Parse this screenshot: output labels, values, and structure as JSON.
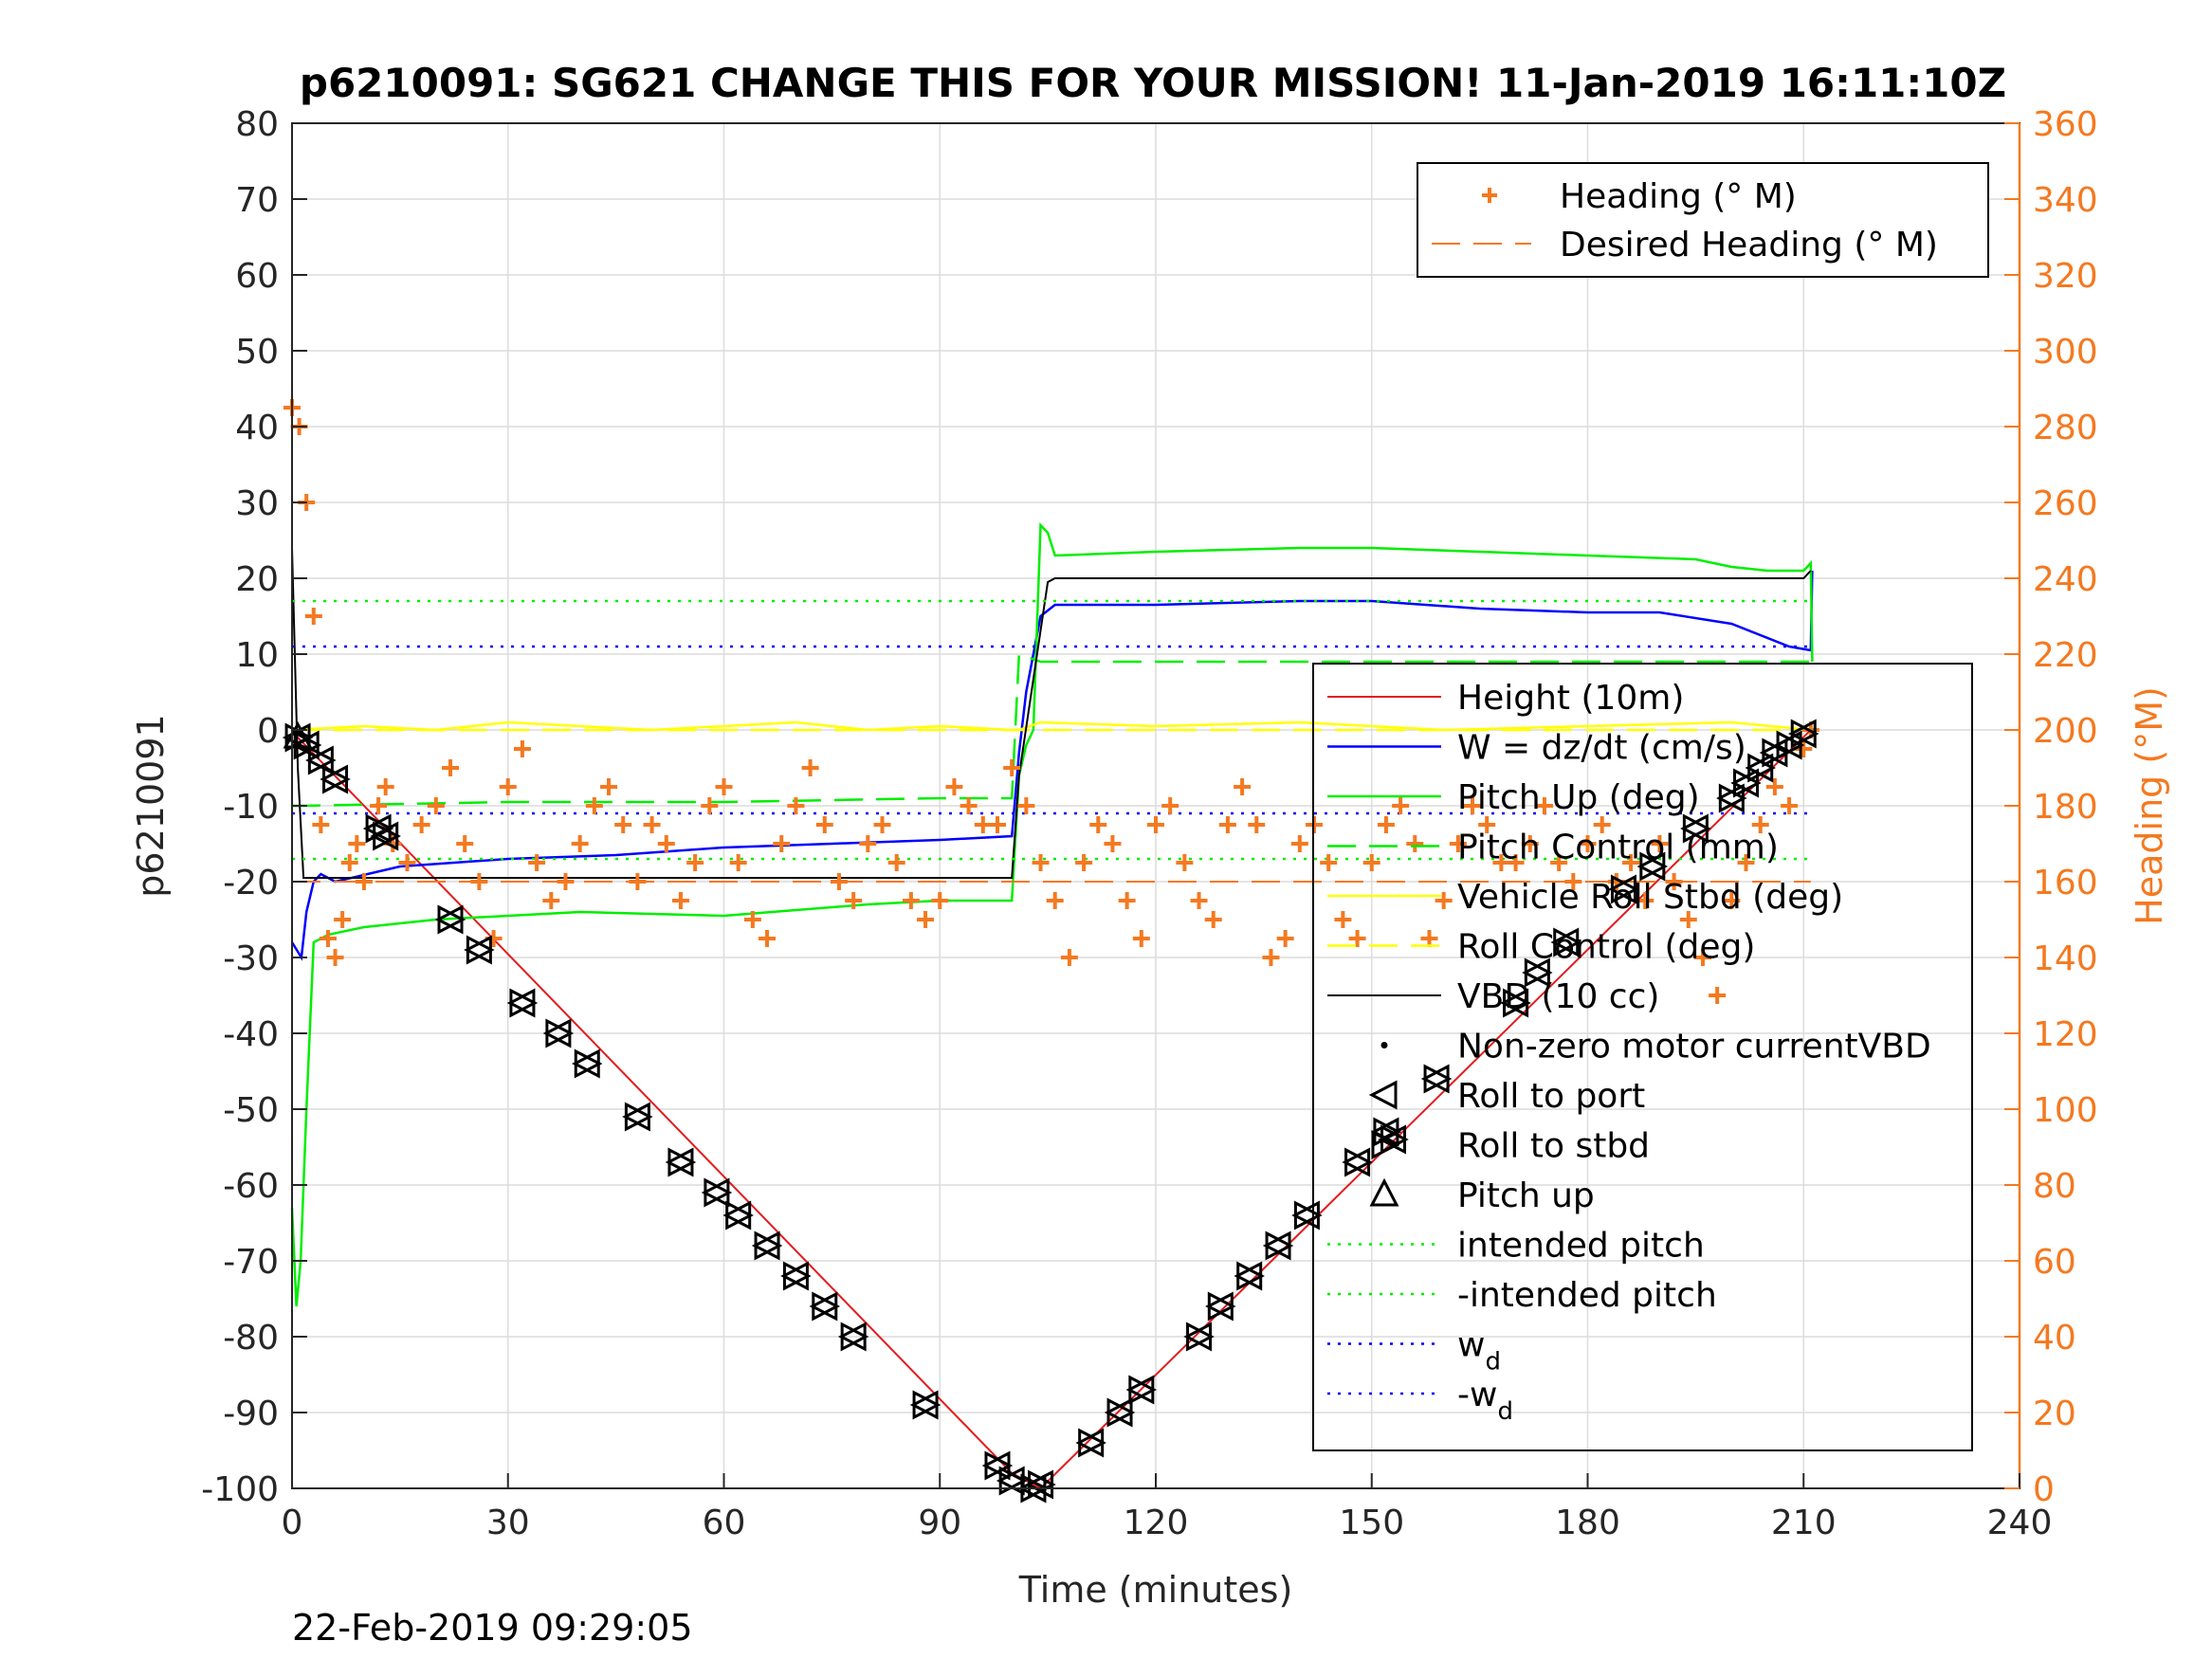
{
  "colors": {
    "heading": "#f47920",
    "height": "#e41a1c",
    "w": "#0000ff",
    "pitch": "#00ee00",
    "roll": "#ffff00",
    "vbd": "#000000",
    "axes": "#262626",
    "grid": "#dcdcdc"
  },
  "footer": {
    "timestamp": "22-Feb-2019 09:29:05"
  },
  "chart_data": {
    "type": "line",
    "title": "p6210091: SG621 CHANGE THIS FOR YOUR MISSION! 11-Jan-2019 16:11:10Z",
    "xlabel": "Time (minutes)",
    "ylabel": "p6210091",
    "ylabel_right": "Heading (°M)",
    "xlim": [
      0,
      240
    ],
    "ylim": [
      -100,
      80
    ],
    "ylim_right": [
      0,
      360
    ],
    "grid": true,
    "xticks": [
      "0",
      "30",
      "60",
      "90",
      "120",
      "150",
      "180",
      "210",
      "240"
    ],
    "yticks": [
      "80",
      "70",
      "60",
      "50",
      "40",
      "30",
      "20",
      "10",
      "0",
      "-10",
      "-20",
      "-30",
      "-40",
      "-50",
      "-60",
      "-70",
      "-80",
      "-90",
      "-100"
    ],
    "yticks_right": [
      "360",
      "340",
      "320",
      "300",
      "280",
      "260",
      "240",
      "220",
      "200",
      "180",
      "160",
      "140",
      "120",
      "100",
      "80",
      "60",
      "40",
      "20",
      "0"
    ],
    "legend_top": {
      "placement": "top-right",
      "entries": [
        "Heading (° M)",
        "Desired Heading (° M)"
      ]
    },
    "legend_main": {
      "placement": "right",
      "entries": [
        {
          "main": "Height (10m)",
          "sub": ""
        },
        {
          "main": "W = dz/dt (cm/s)",
          "sub": ""
        },
        {
          "main": "Pitch Up (deg)",
          "sub": ""
        },
        {
          "main": "Pitch Control (mm)",
          "sub": ""
        },
        {
          "main": "Vehicle Roll Stbd (deg)",
          "sub": ""
        },
        {
          "main": "Roll Control (deg)",
          "sub": ""
        },
        {
          "main": "VBD (10 cc)",
          "sub": ""
        },
        {
          "main": "Non-zero motor currentVBD",
          "sub": ""
        },
        {
          "main": "Roll to port",
          "sub": ""
        },
        {
          "main": "Roll to stbd",
          "sub": ""
        },
        {
          "main": "Pitch up",
          "sub": ""
        },
        {
          "main": "intended pitch",
          "sub": ""
        },
        {
          "main": "-intended pitch",
          "sub": ""
        },
        {
          "main": "w",
          "sub": "d"
        },
        {
          "main": "-w",
          "sub": "d"
        }
      ]
    },
    "series": [
      {
        "name": "Height (10m)",
        "axis": "left",
        "x": [
          0,
          0.8,
          100,
          104,
          211
        ],
        "y": [
          0,
          -1,
          -98,
          -100,
          0
        ]
      },
      {
        "name": "W = dz/dt (cm/s)",
        "axis": "left",
        "x": [
          0,
          1.3,
          2,
          3,
          4,
          6,
          15,
          30,
          45,
          60,
          75,
          90,
          100,
          101,
          102,
          103,
          104,
          106,
          120,
          140,
          150,
          165,
          180,
          190,
          200,
          208,
          211,
          211.2
        ],
        "y": [
          -28,
          -30,
          -24,
          -20,
          -19,
          -20,
          -18,
          -17,
          -16.5,
          -15.5,
          -15,
          -14.5,
          -14,
          -3,
          5,
          10,
          15,
          16.5,
          16.5,
          17,
          17,
          16,
          15.5,
          15.5,
          14,
          11,
          10.5,
          21
        ]
      },
      {
        "name": "Pitch Up (deg)",
        "axis": "left",
        "x": [
          0,
          0.6,
          1.2,
          2,
          3,
          5,
          10,
          20,
          40,
          60,
          80,
          90,
          100,
          101,
          102,
          103,
          104,
          105,
          106,
          120,
          140,
          150,
          165,
          180,
          195,
          200,
          205,
          210,
          211,
          211.2
        ],
        "y": [
          -63,
          -76,
          -70,
          -50,
          -28,
          -27,
          -26,
          -25,
          -24,
          -24.5,
          -23,
          -22.5,
          -22.5,
          -6,
          -2,
          0,
          27,
          26,
          23,
          23.5,
          24,
          24,
          23.5,
          23,
          22.5,
          21.5,
          21,
          21,
          22,
          9
        ]
      },
      {
        "name": "Pitch Control (mm)",
        "axis": "left",
        "x": [
          0,
          1,
          30,
          60,
          90,
          100,
          101,
          104,
          211
        ],
        "y": [
          -10,
          -10,
          -9.5,
          -9.5,
          -9,
          -9,
          10,
          9,
          9
        ]
      },
      {
        "name": "Vehicle Roll Stbd (deg)",
        "axis": "left",
        "x": [
          0,
          10,
          20,
          30,
          40,
          50,
          60,
          70,
          80,
          90,
          100,
          101,
          104,
          120,
          140,
          160,
          180,
          200,
          211
        ],
        "y": [
          0,
          0.5,
          0,
          1,
          0.5,
          0,
          0.5,
          1,
          0,
          0.5,
          0,
          0,
          1,
          0.5,
          1,
          0,
          0.5,
          1,
          0
        ]
      },
      {
        "name": "Roll Control (deg)",
        "axis": "left",
        "x": [
          0,
          211
        ],
        "y": [
          0,
          0
        ]
      },
      {
        "name": "VBD (10 cc)",
        "axis": "left",
        "x": [
          0,
          0.8,
          1.6,
          100,
          101,
          105,
          106,
          210,
          211
        ],
        "y": [
          24,
          -5,
          -19.5,
          -19.5,
          -6,
          19.5,
          20,
          20,
          21
        ]
      },
      {
        "name": "intended pitch",
        "axis": "left",
        "x": [
          0,
          211
        ],
        "y": [
          17,
          17
        ]
      },
      {
        "name": "-intended pitch",
        "axis": "left",
        "x": [
          0,
          211
        ],
        "y": [
          -17,
          -17
        ]
      },
      {
        "name": "wd",
        "axis": "left",
        "x": [
          0,
          211
        ],
        "y": [
          11,
          11
        ]
      },
      {
        "name": "-wd",
        "axis": "left",
        "x": [
          0,
          211
        ],
        "y": [
          -11,
          -11
        ]
      },
      {
        "name": "Desired Heading (° M)",
        "axis": "right",
        "x": [
          0,
          211
        ],
        "y": [
          160,
          160
        ]
      },
      {
        "name": "Heading (° M)",
        "axis": "right",
        "x": [
          0,
          1,
          2,
          3,
          4,
          5,
          6,
          7,
          8,
          9,
          10,
          12,
          13,
          14,
          16,
          18,
          20,
          22,
          24,
          26,
          28,
          30,
          32,
          34,
          36,
          38,
          40,
          42,
          44,
          46,
          48,
          50,
          52,
          54,
          56,
          58,
          60,
          62,
          64,
          66,
          68,
          70,
          72,
          74,
          76,
          78,
          80,
          82,
          84,
          86,
          88,
          90,
          92,
          94,
          96,
          98,
          100,
          102,
          104,
          106,
          108,
          110,
          112,
          114,
          116,
          118,
          120,
          122,
          124,
          126,
          128,
          130,
          132,
          134,
          136,
          138,
          140,
          142,
          144,
          146,
          148,
          150,
          152,
          154,
          156,
          158,
          160,
          162,
          164,
          166,
          168,
          170,
          172,
          174,
          176,
          178,
          180,
          182,
          184,
          186,
          188,
          190,
          192,
          194,
          196,
          198,
          200,
          202,
          204,
          206,
          208,
          210,
          211
        ],
        "y": [
          285,
          280,
          260,
          230,
          175,
          145,
          140,
          150,
          165,
          170,
          160,
          180,
          185,
          170,
          165,
          175,
          180,
          190,
          170,
          160,
          145,
          185,
          195,
          165,
          155,
          160,
          170,
          180,
          185,
          175,
          160,
          175,
          170,
          155,
          165,
          180,
          185,
          165,
          150,
          145,
          170,
          180,
          190,
          175,
          160,
          155,
          170,
          175,
          165,
          155,
          150,
          155,
          185,
          180,
          175,
          175,
          190,
          180,
          165,
          155,
          140,
          165,
          175,
          170,
          155,
          145,
          175,
          180,
          165,
          155,
          150,
          175,
          185,
          175,
          140,
          145,
          170,
          175,
          165,
          150,
          145,
          165,
          175,
          180,
          170,
          145,
          155,
          170,
          180,
          175,
          165,
          165,
          170,
          180,
          165,
          160,
          170,
          175,
          160,
          165,
          155,
          170,
          160,
          150,
          140,
          130,
          155,
          165,
          175,
          185,
          180,
          195,
          200
        ]
      }
    ],
    "markers": {
      "name": "Roll to port / Roll to stbd / Pitch up",
      "x": [
        0.8,
        2,
        4,
        6,
        12,
        13,
        22,
        26,
        32,
        37,
        41,
        48,
        54,
        59,
        62,
        66,
        70,
        74,
        78,
        88,
        98,
        100,
        103,
        104,
        111,
        115,
        118,
        126,
        129,
        133,
        137,
        141,
        148,
        152,
        153,
        159,
        170,
        173,
        177,
        185,
        189,
        195,
        200,
        202,
        204,
        206,
        208,
        210
      ],
      "y": [
        -1,
        -2,
        -4,
        -6.5,
        -13,
        -14,
        -25,
        -29,
        -36,
        -40,
        -44,
        -51,
        -57,
        -61,
        -64,
        -68,
        -72,
        -76,
        -80,
        -89,
        -97,
        -99,
        -100,
        -99.5,
        -94,
        -90,
        -87,
        -80,
        -76,
        -72,
        -68,
        -64,
        -57,
        -53,
        -54,
        -46,
        -36,
        -32,
        -28,
        -21,
        -18,
        -13,
        -9,
        -7,
        -5,
        -3,
        -2,
        -0.5
      ]
    }
  }
}
